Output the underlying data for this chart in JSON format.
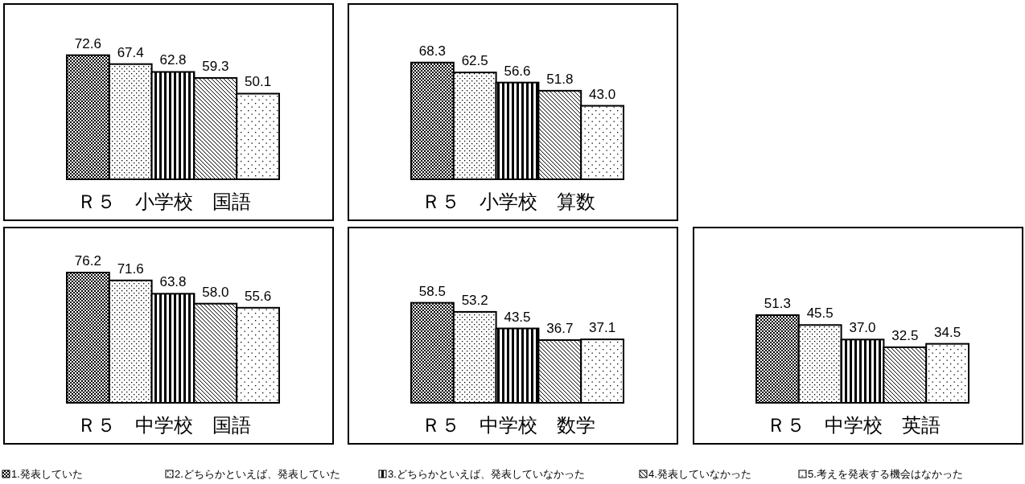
{
  "chart_data": [
    {
      "type": "bar",
      "xlabel": "Ｒ５　小学校　国語",
      "categories": [
        null
      ],
      "legend": "bottom",
      "series": [
        {
          "name": "1.発表していた",
          "color": "#000000",
          "values": [
            72.6
          ],
          "value_labels": [
            "72.6"
          ]
        },
        {
          "name": "2.どちらかといえば、発表していた",
          "color": "#000000",
          "values": [
            67.4
          ],
          "value_labels": [
            "67.4"
          ]
        },
        {
          "name": "3.どちらかといえば、発表していなかった",
          "color": "#000000",
          "values": [
            62.8
          ],
          "value_labels": [
            "62.8"
          ]
        },
        {
          "name": "4.発表していなかった",
          "color": "#000000",
          "values": [
            59.3
          ],
          "value_labels": [
            "59.3"
          ]
        },
        {
          "name": "5.考えを発表する機会はなかった",
          "color": "#000000",
          "values": [
            50.1
          ],
          "value_labels": [
            "50.1"
          ]
        }
      ]
    },
    {
      "type": "bar",
      "xlabel": "Ｒ５　小学校　算数",
      "categories": [
        null
      ],
      "series": [
        {
          "color": "#000000",
          "values": [
            68.3
          ],
          "value_labels": [
            "68.3"
          ]
        },
        {
          "color": "#000000",
          "values": [
            62.5
          ],
          "value_labels": [
            "62.5"
          ]
        },
        {
          "color": "#000000",
          "values": [
            56.6
          ],
          "value_labels": [
            "56.6"
          ]
        },
        {
          "color": "#000000",
          "values": [
            51.8
          ],
          "value_labels": [
            "51.8"
          ]
        },
        {
          "color": "#000000",
          "values": [
            43.0
          ],
          "value_labels": [
            "43.0"
          ]
        }
      ]
    },
    {
      "type": "bar",
      "xlabel": "Ｒ５　中学校　国語",
      "categories": [
        null
      ],
      "series": [
        {
          "color": "#000000",
          "values": [
            76.2
          ],
          "value_labels": [
            "76.2"
          ]
        },
        {
          "color": "#000000",
          "values": [
            71.6
          ],
          "value_labels": [
            "71.6"
          ]
        },
        {
          "color": "#000000",
          "values": [
            63.8
          ],
          "value_labels": [
            "63.8"
          ]
        },
        {
          "color": "#000000",
          "values": [
            58.0
          ],
          "value_labels": [
            "58.0"
          ]
        },
        {
          "color": "#000000",
          "values": [
            55.6
          ],
          "value_labels": [
            "55.6"
          ]
        }
      ]
    },
    {
      "type": "bar",
      "xlabel": "Ｒ５　中学校　数学",
      "categories": [
        null
      ],
      "series": [
        {
          "color": "#000000",
          "values": [
            58.5
          ],
          "value_labels": [
            "58.5"
          ]
        },
        {
          "color": "#000000",
          "values": [
            53.2
          ],
          "value_labels": [
            "53.2"
          ]
        },
        {
          "color": "#000000",
          "values": [
            43.5
          ],
          "value_labels": [
            "43.5"
          ]
        },
        {
          "color": "#000000",
          "values": [
            36.7
          ],
          "value_labels": [
            "36.7"
          ]
        },
        {
          "color": "#000000",
          "values": [
            37.1
          ],
          "value_labels": [
            "37.1"
          ]
        }
      ]
    },
    {
      "type": "bar",
      "xlabel": "Ｒ５　中学校　英語",
      "categories": [
        null
      ],
      "series": [
        {
          "color": "#000000",
          "values": [
            51.3
          ],
          "value_labels": [
            "51.3"
          ]
        },
        {
          "color": "#000000",
          "values": [
            45.5
          ],
          "value_labels": [
            "45.5"
          ]
        },
        {
          "color": "#000000",
          "values": [
            37.0
          ],
          "value_labels": [
            "37.0"
          ]
        },
        {
          "color": "#000000",
          "values": [
            32.5
          ],
          "value_labels": [
            "32.5"
          ]
        },
        {
          "color": "#000000",
          "values": [
            34.5
          ],
          "value_labels": [
            "34.5"
          ]
        }
      ]
    }
  ]
}
